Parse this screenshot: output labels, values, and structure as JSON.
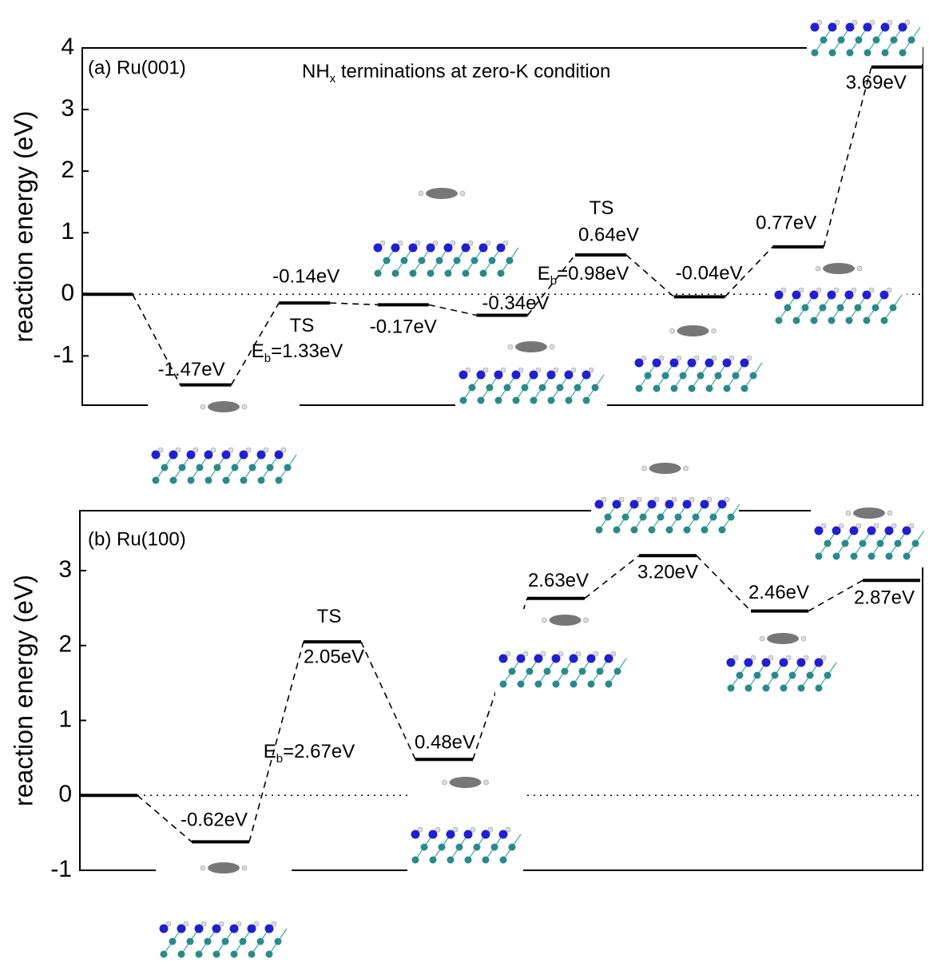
{
  "chart_data": [
    {
      "type": "energy",
      "panel_label": "(a) Ru(001)",
      "title": {
        "main": "NH",
        "sub": "x",
        "rest": " terminations at zero-K condition"
      },
      "y_label": "reaction energy (eV)",
      "values": [
        0,
        -1.47,
        -0.14,
        -0.17,
        -0.34,
        0.64,
        -0.04,
        0.77,
        3.69
      ],
      "value_labels": [
        null,
        "-1.47eV",
        "-0.14eV",
        "-0.17eV",
        "-0.34eV",
        "0.64eV",
        "-0.04eV",
        "0.77eV",
        "3.69eV"
      ],
      "annotations": [
        {
          "text": "TS"
        },
        {
          "text": "E",
          "sub": "b",
          "rest": "=1.33eV"
        },
        {
          "text": "TS"
        },
        {
          "text": "E",
          "sub": "b",
          "rest": "=0.98eV"
        }
      ],
      "ylim": [
        -1.8,
        4
      ],
      "yticks": [
        -1,
        0,
        1,
        2,
        3,
        4
      ],
      "zero_line": true,
      "color": "#000000"
    },
    {
      "type": "energy",
      "panel_label": "(b) Ru(100)",
      "y_label": "reaction energy (eV)",
      "values": [
        0,
        -0.62,
        2.05,
        0.48,
        2.63,
        3.2,
        2.46,
        2.87
      ],
      "value_labels": [
        null,
        "-0.62eV",
        "2.05eV",
        "0.48eV",
        "2.63eV",
        "3.20eV",
        "2.46eV",
        "2.87eV"
      ],
      "annotations": [
        {
          "text": "TS"
        },
        {
          "text": "E",
          "sub": "b",
          "rest": "=2.67eV"
        }
      ],
      "ylim": [
        -1,
        3.8
      ],
      "yticks": [
        -1,
        0,
        1,
        2,
        3
      ],
      "zero_line": true,
      "color": "#000000"
    }
  ]
}
